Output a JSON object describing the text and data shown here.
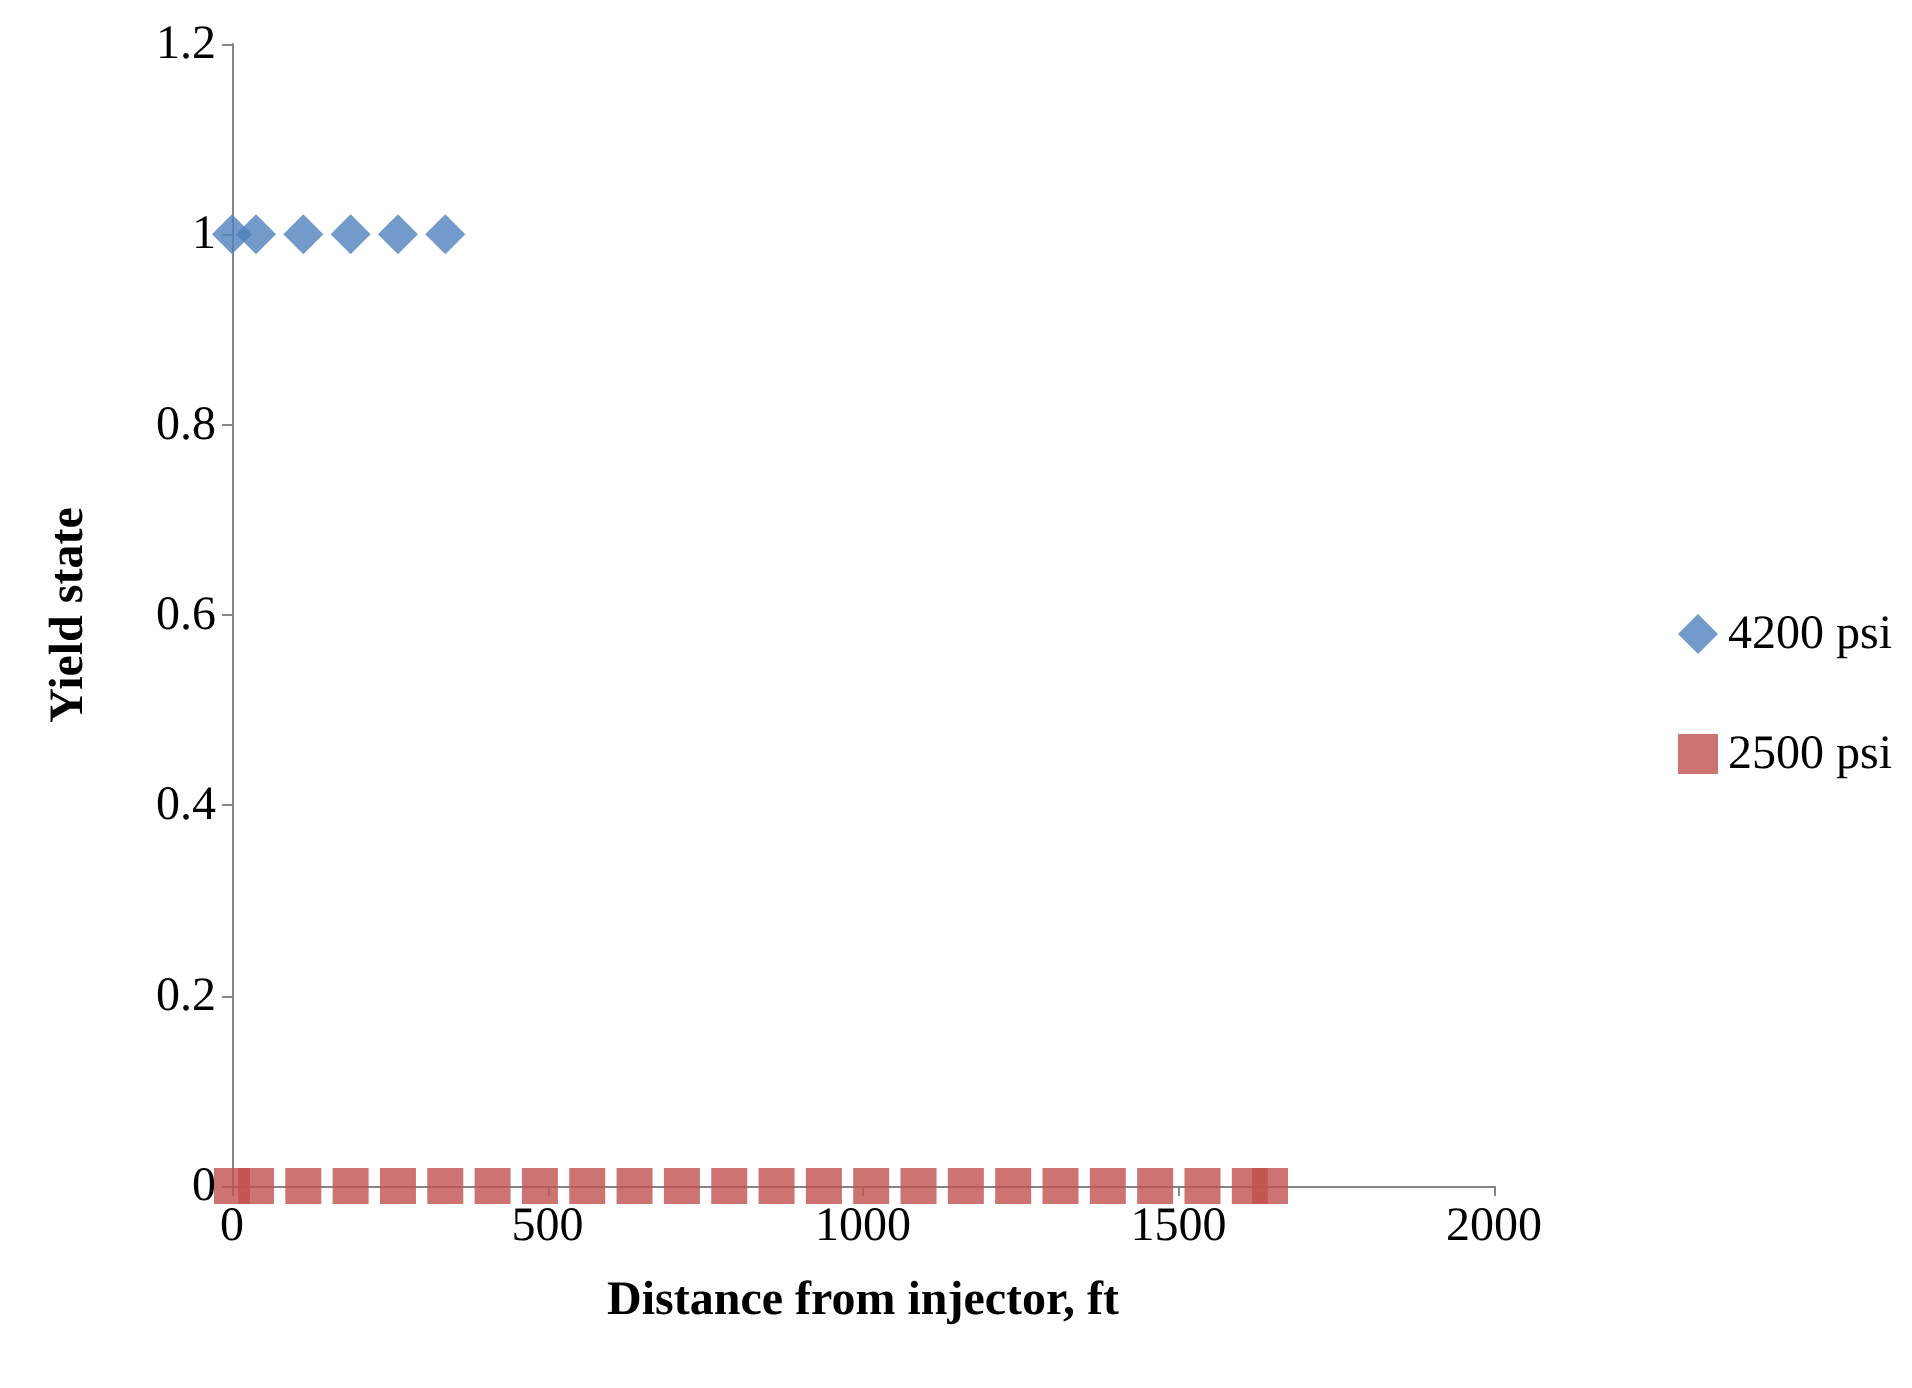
{
  "chart_data": {
    "type": "scatter",
    "xlabel": "Distance from injector, ft",
    "ylabel": "Yield state",
    "xlim": [
      0,
      2000
    ],
    "xticks": [
      0,
      500,
      1000,
      1500,
      2000
    ],
    "ylim": [
      0,
      1.2
    ],
    "yticks": [
      0,
      0.2,
      0.4,
      0.6,
      0.8,
      1,
      1.2
    ],
    "grid": false,
    "legend": "right",
    "series": [
      {
        "name": "4200 psi",
        "color": "#4f81bd",
        "marker": "diamond",
        "x": [
          0,
          38,
          113,
          188,
          263,
          338
        ],
        "values": [
          1,
          1,
          1,
          1,
          1,
          1
        ]
      },
      {
        "name": "2500 psi",
        "color": "#c0504d",
        "marker": "square",
        "x": [
          0,
          38,
          113,
          188,
          263,
          338,
          413,
          488,
          563,
          638,
          713,
          788,
          863,
          938,
          1013,
          1088,
          1163,
          1238,
          1313,
          1388,
          1463,
          1538,
          1613,
          1645
        ],
        "values": [
          0,
          0,
          0,
          0,
          0,
          0,
          0,
          0,
          0,
          0,
          0,
          0,
          0,
          0,
          0,
          0,
          0,
          0,
          0,
          0,
          0,
          0,
          0,
          0
        ]
      }
    ]
  }
}
